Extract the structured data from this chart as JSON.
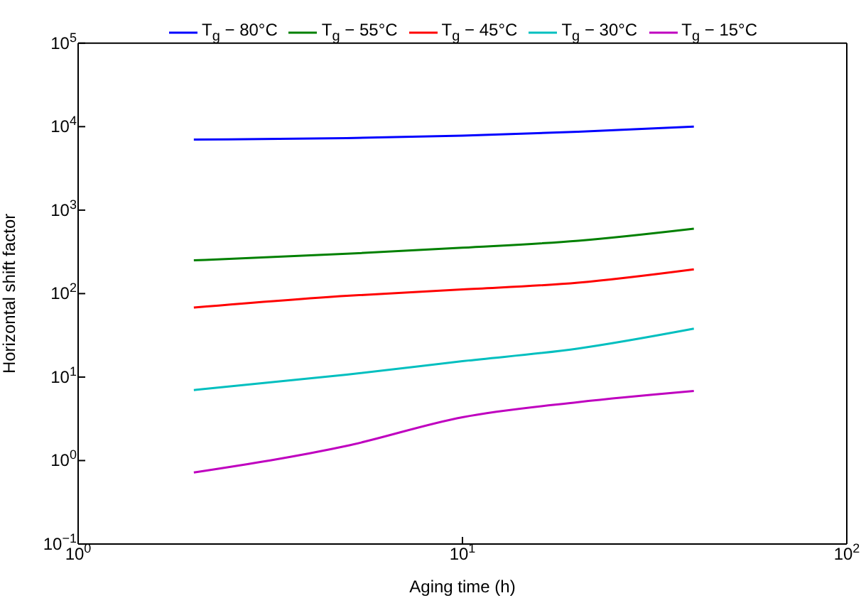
{
  "chart_data": {
    "type": "line",
    "xlabel": "Aging time (h)",
    "ylabel": "Horizontal shift factor",
    "log": "xy",
    "legend": "top",
    "marker": "none",
    "line_style": "solid",
    "x": [
      2,
      5,
      10,
      20,
      40
    ],
    "xlim": [
      1,
      100
    ],
    "xticks": [
      {
        "value": 1,
        "label": "10$^{0}$"
      },
      {
        "value": 10,
        "label": "10$^{1}$"
      },
      {
        "value": 100,
        "label": "10$^{2}$"
      }
    ],
    "ylim": [
      0.1,
      100000
    ],
    "yticks": [
      {
        "value": 0.1,
        "label": "10$^{−1}$"
      },
      {
        "value": 1,
        "label": "10$^{0}$"
      },
      {
        "value": 10,
        "label": "10$^{1}$"
      },
      {
        "value": 100,
        "label": "10$^{2}$"
      },
      {
        "value": 1000,
        "label": "10$^{3}$"
      },
      {
        "value": 10000,
        "label": "10$^{4}$"
      },
      {
        "value": 100000,
        "label": "10$^{5}$"
      }
    ],
    "series": [
      {
        "name": "T$_{g}$ − 80°C",
        "color": "#0000ff",
        "values": [
          7000,
          7300,
          7800,
          8700,
          10000
        ]
      },
      {
        "name": "T$_{g}$ − 55°C",
        "color": "#008000",
        "values": [
          250,
          300,
          355,
          430,
          600
        ]
      },
      {
        "name": "T$_{g}$ − 45°C",
        "color": "#ff0000",
        "values": [
          68,
          94,
          112,
          135,
          195
        ]
      },
      {
        "name": "T$_{g}$ − 30°C",
        "color": "#00bfbf",
        "values": [
          7,
          10.7,
          15.5,
          22,
          38
        ]
      },
      {
        "name": "T$_{g}$ − 15°C",
        "color": "#bf00bf",
        "values": [
          0.72,
          1.5,
          3.3,
          5,
          6.8
        ]
      }
    ]
  }
}
